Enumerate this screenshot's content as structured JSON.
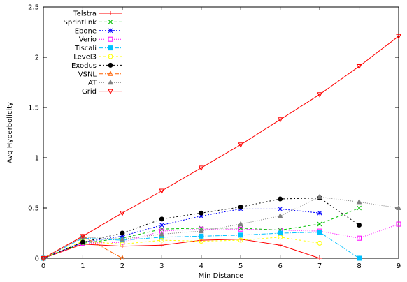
{
  "chart_data": {
    "type": "line",
    "xlabel": "Min Distance",
    "ylabel": "Avg Hyperbolicity",
    "xlim": [
      0,
      9
    ],
    "ylim": [
      0,
      2.5
    ],
    "x_ticks": [
      "0",
      "1",
      "2",
      "3",
      "4",
      "5",
      "6",
      "7",
      "8",
      "9"
    ],
    "y_ticks": [
      "0",
      "0.5",
      "1",
      "1.5",
      "2",
      "2.5"
    ],
    "x_tick_values": [
      0,
      1,
      2,
      3,
      4,
      5,
      6,
      7,
      8,
      9
    ],
    "y_tick_values": [
      0,
      0.5,
      1,
      1.5,
      2,
      2.5
    ],
    "grid": false,
    "legend_position": "top-left",
    "series": [
      {
        "name": "Telstra",
        "color": "#ff0000",
        "dash": "",
        "marker": "plus",
        "x": [
          0,
          1,
          2,
          3,
          4,
          5,
          6,
          7
        ],
        "y": [
          0,
          0.14,
          0.12,
          0.13,
          0.18,
          0.19,
          0.13,
          0.0
        ]
      },
      {
        "name": "Sprintlink",
        "color": "#00c000",
        "dash": "4,3",
        "marker": "cross",
        "x": [
          0,
          1,
          2,
          3,
          4,
          5,
          6,
          7,
          8
        ],
        "y": [
          0,
          0.15,
          0.2,
          0.29,
          0.3,
          0.3,
          0.28,
          0.34,
          0.5
        ]
      },
      {
        "name": "Ebone",
        "color": "#0000ff",
        "dash": "2,2",
        "marker": "star",
        "x": [
          0,
          1,
          2,
          3,
          4,
          5,
          6,
          7
        ],
        "y": [
          0,
          0.16,
          0.22,
          0.33,
          0.42,
          0.49,
          0.49,
          0.45
        ]
      },
      {
        "name": "Verio",
        "color": "#ff00ff",
        "dash": "1,2",
        "marker": "square",
        "x": [
          0,
          1,
          2,
          3,
          4,
          5,
          6,
          7,
          8,
          9
        ],
        "y": [
          0,
          0.15,
          0.16,
          0.27,
          0.29,
          0.29,
          0.28,
          0.27,
          0.2,
          0.34
        ]
      },
      {
        "name": "Tiscali",
        "color": "#00c0ff",
        "dash": "6,2,1,2",
        "marker": "filled-square",
        "x": [
          0,
          1,
          2,
          3,
          4,
          5,
          6,
          7,
          8
        ],
        "y": [
          0,
          0.2,
          0.18,
          0.21,
          0.22,
          0.23,
          0.25,
          0.26,
          0.0
        ]
      },
      {
        "name": "Level3",
        "color": "#ffff00",
        "dash": "3,3",
        "marker": "circle",
        "x": [
          0,
          1,
          2,
          3,
          4,
          5,
          6,
          7
        ],
        "y": [
          0,
          0.17,
          0.14,
          0.18,
          0.17,
          0.18,
          0.21,
          0.15
        ]
      },
      {
        "name": "Exodus",
        "color": "#000000",
        "dash": "2,3",
        "marker": "filled-circle",
        "x": [
          0,
          1,
          2,
          3,
          4,
          5,
          6,
          7,
          8
        ],
        "y": [
          0,
          0.16,
          0.25,
          0.39,
          0.45,
          0.51,
          0.59,
          0.6,
          0.33
        ]
      },
      {
        "name": "VSNL",
        "color": "#ff6000",
        "dash": "6,2,1,2",
        "marker": "triangle",
        "x": [
          0,
          1,
          2
        ],
        "y": [
          0,
          0.22,
          0.0
        ]
      },
      {
        "name": "AT",
        "color": "#808080",
        "dash": "1,2",
        "marker": "filled-triangle",
        "x": [
          0,
          1,
          2,
          3,
          4,
          5,
          6,
          7,
          8,
          9
        ],
        "y": [
          0,
          0.21,
          0.19,
          0.24,
          0.27,
          0.34,
          0.42,
          0.61,
          0.56,
          0.5
        ]
      },
      {
        "name": "Grid",
        "color": "#ff0000",
        "dash": "",
        "marker": "inv-triangle",
        "x": [
          0,
          1,
          2,
          3,
          4,
          5,
          6,
          7,
          8,
          9
        ],
        "y": [
          0,
          0.22,
          0.45,
          0.67,
          0.9,
          1.13,
          1.38,
          1.63,
          1.91,
          2.21
        ]
      }
    ]
  }
}
